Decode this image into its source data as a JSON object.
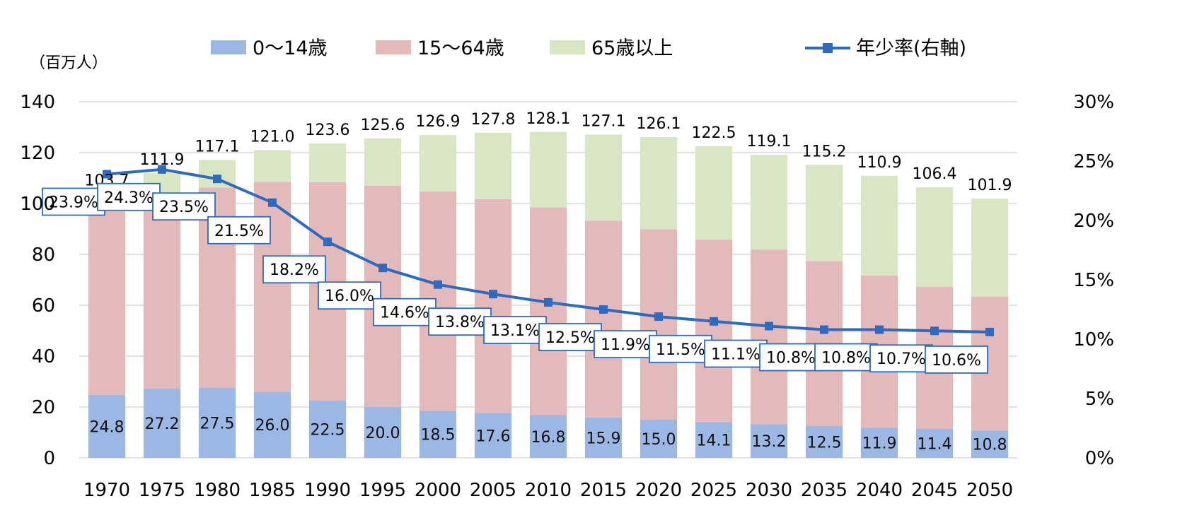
{
  "chart_data": {
    "type": "bar",
    "stacked": true,
    "unit_label": "（百万人）",
    "categories": [
      "1970",
      "1975",
      "1980",
      "1985",
      "1990",
      "1995",
      "2000",
      "2005",
      "2010",
      "2015",
      "2020",
      "2025",
      "2030",
      "2035",
      "2040",
      "2045",
      "2050"
    ],
    "series": [
      {
        "name": "0～14歳",
        "color": "#9bb7e3",
        "values": [
          24.8,
          27.2,
          27.5,
          26.0,
          22.5,
          20.0,
          18.5,
          17.6,
          16.8,
          15.9,
          15.0,
          14.1,
          13.2,
          12.5,
          11.9,
          11.4,
          10.8
        ],
        "value_labels": [
          "24.8",
          "27.2",
          "27.5",
          "26.0",
          "22.5",
          "20.0",
          "18.5",
          "17.6",
          "16.8",
          "15.9",
          "15.0",
          "14.1",
          "13.2",
          "12.5",
          "11.9",
          "11.4",
          "10.8"
        ]
      },
      {
        "name": "15～64歳",
        "color": "#e4b9b9",
        "values": [
          72.1,
          75.8,
          78.8,
          82.5,
          85.9,
          87.0,
          86.2,
          84.1,
          81.7,
          77.3,
          74.9,
          71.7,
          68.7,
          64.9,
          59.8,
          55.9,
          52.6
        ]
      },
      {
        "name": "65歳以上",
        "color": "#d9e6c3",
        "values": [
          6.8,
          8.9,
          10.8,
          12.5,
          15.2,
          18.6,
          22.2,
          26.1,
          29.6,
          33.9,
          36.2,
          36.7,
          37.2,
          37.8,
          39.2,
          39.1,
          38.5
        ]
      }
    ],
    "totals": [
      103.7,
      111.9,
      117.1,
      121.0,
      123.6,
      125.6,
      126.9,
      127.8,
      128.1,
      127.1,
      126.1,
      122.5,
      119.1,
      115.2,
      110.9,
      106.4,
      101.9
    ],
    "total_labels": [
      "103.7",
      "111.9",
      "117.1",
      "121.0",
      "123.6",
      "125.6",
      "126.9",
      "127.8",
      "128.1",
      "127.1",
      "126.1",
      "122.5",
      "119.1",
      "115.2",
      "110.9",
      "106.4",
      "101.9"
    ],
    "line_series": {
      "name": "年少率(右軸)",
      "axis": "right",
      "color": "#2e6bc0",
      "values": [
        23.9,
        24.3,
        23.5,
        21.5,
        18.2,
        16.0,
        14.6,
        13.8,
        13.1,
        12.5,
        11.9,
        11.5,
        11.1,
        10.8,
        10.8,
        10.7,
        10.6
      ],
      "labels": [
        "23.9%",
        "24.3%",
        "23.5%",
        "21.5%",
        "18.2%",
        "16.0%",
        "14.6%",
        "13.8%",
        "13.1%",
        "12.5%",
        "11.9%",
        "11.5%",
        "11.1%",
        "10.8%",
        "10.8%",
        "10.7%",
        "10.6%"
      ]
    },
    "y_left": {
      "min": 0,
      "max": 140,
      "ticks": [
        "0",
        "20",
        "40",
        "60",
        "80",
        "100",
        "120",
        "140"
      ]
    },
    "y_right": {
      "min": 0,
      "max": 30,
      "ticks": [
        "0%",
        "5%",
        "10%",
        "15%",
        "20%",
        "25%",
        "30%"
      ]
    },
    "grid": true,
    "legend_position": "top"
  }
}
